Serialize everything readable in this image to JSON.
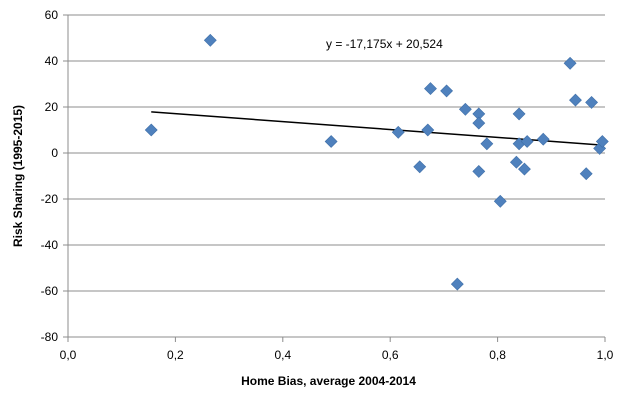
{
  "chart_data": {
    "type": "scatter",
    "title": "",
    "xlabel": "Home Bias, average 2004-2014",
    "ylabel": "Risk Sharing (1995-2015)",
    "xlim": [
      0,
      1
    ],
    "ylim": [
      -80,
      60
    ],
    "x_ticks": [
      0,
      0.2,
      0.4,
      0.6,
      0.8,
      1.0
    ],
    "x_tick_labels": [
      "0,0",
      "0,2",
      "0,4",
      "0,6",
      "0,8",
      "1,0"
    ],
    "y_ticks": [
      -80,
      -60,
      -40,
      -20,
      0,
      20,
      40,
      60
    ],
    "y_tick_labels": [
      "-80",
      "-60",
      "-40",
      "-20",
      "0",
      "20",
      "40",
      "60"
    ],
    "grid": "horizontal",
    "marker_color": "#4F81BD",
    "trendline_color": "#000000",
    "trendline": {
      "slope": -17.175,
      "intercept": 20.524,
      "x_range": [
        0.155,
        0.995
      ],
      "equation_label": "y = -17,175x + 20,524"
    },
    "points": [
      {
        "x": 0.155,
        "y": 10
      },
      {
        "x": 0.265,
        "y": 49
      },
      {
        "x": 0.49,
        "y": 5
      },
      {
        "x": 0.615,
        "y": 9
      },
      {
        "x": 0.655,
        "y": -6
      },
      {
        "x": 0.67,
        "y": 10
      },
      {
        "x": 0.675,
        "y": 28
      },
      {
        "x": 0.705,
        "y": 27
      },
      {
        "x": 0.725,
        "y": -57
      },
      {
        "x": 0.74,
        "y": 19
      },
      {
        "x": 0.765,
        "y": 17
      },
      {
        "x": 0.765,
        "y": 13
      },
      {
        "x": 0.765,
        "y": -8
      },
      {
        "x": 0.78,
        "y": 4
      },
      {
        "x": 0.805,
        "y": -21
      },
      {
        "x": 0.835,
        "y": -4
      },
      {
        "x": 0.84,
        "y": 4
      },
      {
        "x": 0.84,
        "y": 17
      },
      {
        "x": 0.85,
        "y": -7
      },
      {
        "x": 0.855,
        "y": 5
      },
      {
        "x": 0.885,
        "y": 6
      },
      {
        "x": 0.935,
        "y": 39
      },
      {
        "x": 0.945,
        "y": 23
      },
      {
        "x": 0.965,
        "y": -9
      },
      {
        "x": 0.975,
        "y": 22
      },
      {
        "x": 0.99,
        "y": 2
      },
      {
        "x": 0.995,
        "y": 5
      }
    ]
  }
}
